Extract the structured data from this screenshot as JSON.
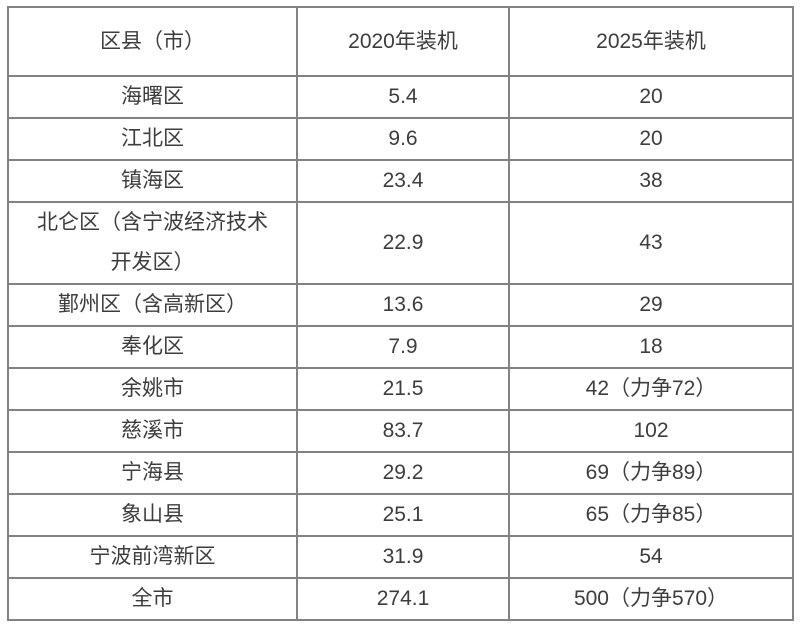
{
  "table": {
    "columns": [
      {
        "key": "region",
        "label": "区县（市）"
      },
      {
        "key": "y2020",
        "label": "2020年装机"
      },
      {
        "key": "y2025",
        "label": "2025年装机"
      }
    ],
    "rows": [
      {
        "region": "海曙区",
        "y2020": "5.4",
        "y2025": "20"
      },
      {
        "region": "江北区",
        "y2020": "9.6",
        "y2025": "20"
      },
      {
        "region": "镇海区",
        "y2020": "23.4",
        "y2025": "38"
      },
      {
        "region": "北仑区（含宁波经济技术开发区）",
        "y2020": "22.9",
        "y2025": "43"
      },
      {
        "region": "鄞州区（含高新区）",
        "y2020": "13.6",
        "y2025": "29"
      },
      {
        "region": "奉化区",
        "y2020": "7.9",
        "y2025": "18"
      },
      {
        "region": "余姚市",
        "y2020": "21.5",
        "y2025": "42（力争72）"
      },
      {
        "region": "慈溪市",
        "y2020": "83.7",
        "y2025": "102"
      },
      {
        "region": "宁海县",
        "y2020": "29.2",
        "y2025": "69（力争89）"
      },
      {
        "region": "象山县",
        "y2020": "25.1",
        "y2025": "65（力争85）"
      },
      {
        "region": "宁波前湾新区",
        "y2020": "31.9",
        "y2025": "54"
      },
      {
        "region": "全市",
        "y2020": "274.1",
        "y2025": "500（力争570）"
      }
    ],
    "colors": {
      "border": "#828282",
      "text": "#3d3d3d",
      "background": "#ffffff"
    }
  },
  "chart_data": {
    "type": "table",
    "title": "",
    "columns": [
      "区县（市）",
      "2020年装机",
      "2025年装机"
    ],
    "rows": [
      [
        "海曙区",
        5.4,
        "20"
      ],
      [
        "江北区",
        9.6,
        "20"
      ],
      [
        "镇海区",
        23.4,
        "38"
      ],
      [
        "北仑区（含宁波经济技术开发区）",
        22.9,
        "43"
      ],
      [
        "鄞州区（含高新区）",
        13.6,
        "29"
      ],
      [
        "奉化区",
        7.9,
        "18"
      ],
      [
        "余姚市",
        21.5,
        "42（力争72）"
      ],
      [
        "慈溪市",
        83.7,
        "102"
      ],
      [
        "宁海县",
        29.2,
        "69（力争89）"
      ],
      [
        "象山县",
        25.1,
        "65（力争85）"
      ],
      [
        "宁波前湾新区",
        31.9,
        "54"
      ],
      [
        "全市",
        274.1,
        "500（力争570）"
      ]
    ]
  }
}
